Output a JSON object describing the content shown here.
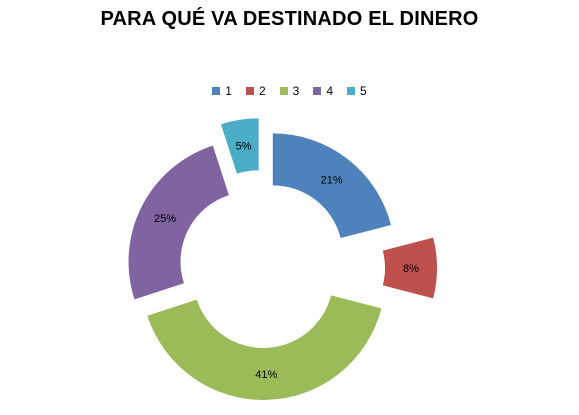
{
  "chart_data": {
    "type": "doughnut",
    "title": "PARA QUÉ VA DESTINADO EL DINERO",
    "categories": [
      "1",
      "2",
      "3",
      "4",
      "5"
    ],
    "values": [
      21,
      8,
      41,
      25,
      5
    ],
    "labels": [
      "21%",
      "8%",
      "41%",
      "25%",
      "5%"
    ],
    "colors": [
      "#4F81BD",
      "#C0504D",
      "#9BBB59",
      "#8064A2",
      "#4BACC6"
    ],
    "legend_position": "top",
    "exploded": true
  }
}
